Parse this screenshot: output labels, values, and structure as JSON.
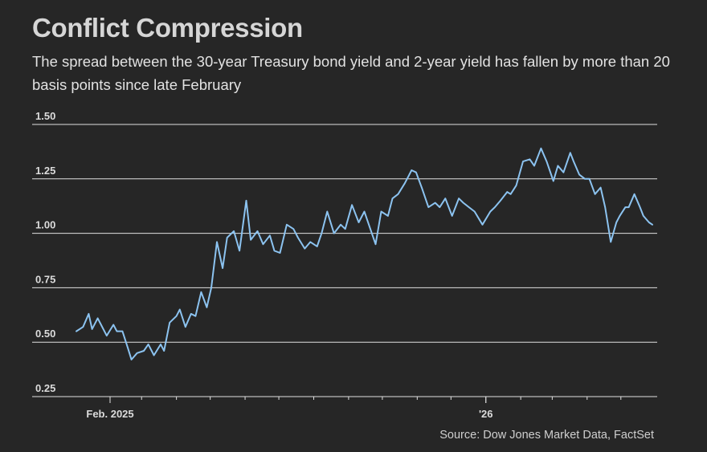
{
  "title": "Conflict Compression",
  "subtitle": "The spread between the 30-year Treasury bond yield and 2-year yield has fallen by more than 20 basis points since late February",
  "source": "Source: Dow Jones Market Data, FactSet",
  "colors": {
    "background": "#262626",
    "line": "#8cc3f0",
    "grid": "#e0e0e0"
  },
  "chart_data": {
    "type": "line",
    "title": "Conflict Compression",
    "ylim": [
      0.25,
      1.5
    ],
    "yticks": [
      "1.50",
      "1.25",
      "1.00",
      "0.75",
      "0.50",
      "0.25"
    ],
    "ytick_values": [
      1.5,
      1.25,
      1.0,
      0.75,
      0.5,
      0.25
    ],
    "xticks": [
      "Feb. 2025",
      "'26"
    ],
    "xtick_dates": [
      "2025-02-01",
      "2026-01-01"
    ],
    "xlim": [
      "2025-01-02",
      "2026-05-29"
    ],
    "grid": true,
    "series": [
      {
        "values": [
          [
            "2025-01-02",
            0.55
          ],
          [
            "2025-01-08",
            0.57
          ],
          [
            "2025-01-13",
            0.63
          ],
          [
            "2025-01-16",
            0.56
          ],
          [
            "2025-01-21",
            0.61
          ],
          [
            "2025-01-24",
            0.58
          ],
          [
            "2025-01-29",
            0.53
          ],
          [
            "2025-02-04",
            0.58
          ],
          [
            "2025-02-07",
            0.55
          ],
          [
            "2025-02-12",
            0.55
          ],
          [
            "2025-02-17",
            0.47
          ],
          [
            "2025-02-20",
            0.42
          ],
          [
            "2025-02-25",
            0.45
          ],
          [
            "2025-03-03",
            0.46
          ],
          [
            "2025-03-07",
            0.49
          ],
          [
            "2025-03-12",
            0.44
          ],
          [
            "2025-03-18",
            0.49
          ],
          [
            "2025-03-21",
            0.46
          ],
          [
            "2025-03-26",
            0.59
          ],
          [
            "2025-04-01",
            0.62
          ],
          [
            "2025-04-04",
            0.65
          ],
          [
            "2025-04-09",
            0.57
          ],
          [
            "2025-04-14",
            0.63
          ],
          [
            "2025-04-18",
            0.62
          ],
          [
            "2025-04-23",
            0.73
          ],
          [
            "2025-04-28",
            0.66
          ],
          [
            "2025-05-02",
            0.75
          ],
          [
            "2025-05-07",
            0.96
          ],
          [
            "2025-05-12",
            0.84
          ],
          [
            "2025-05-16",
            0.98
          ],
          [
            "2025-05-22",
            1.01
          ],
          [
            "2025-05-27",
            0.92
          ],
          [
            "2025-06-02",
            1.15
          ],
          [
            "2025-06-06",
            0.97
          ],
          [
            "2025-06-12",
            1.01
          ],
          [
            "2025-06-17",
            0.95
          ],
          [
            "2025-06-23",
            0.99
          ],
          [
            "2025-06-27",
            0.92
          ],
          [
            "2025-07-02",
            0.91
          ],
          [
            "2025-07-08",
            1.04
          ],
          [
            "2025-07-14",
            1.02
          ],
          [
            "2025-07-18",
            0.98
          ],
          [
            "2025-07-24",
            0.93
          ],
          [
            "2025-07-29",
            0.96
          ],
          [
            "2025-08-04",
            0.94
          ],
          [
            "2025-08-08",
            1.0
          ],
          [
            "2025-08-13",
            1.1
          ],
          [
            "2025-08-19",
            1.0
          ],
          [
            "2025-08-25",
            1.04
          ],
          [
            "2025-08-29",
            1.02
          ],
          [
            "2025-09-04",
            1.13
          ],
          [
            "2025-09-10",
            1.05
          ],
          [
            "2025-09-15",
            1.1
          ],
          [
            "2025-09-19",
            1.04
          ],
          [
            "2025-09-25",
            0.95
          ],
          [
            "2025-09-30",
            1.1
          ],
          [
            "2025-10-06",
            1.08
          ],
          [
            "2025-10-10",
            1.16
          ],
          [
            "2025-10-15",
            1.18
          ],
          [
            "2025-10-21",
            1.23
          ],
          [
            "2025-10-27",
            1.29
          ],
          [
            "2025-10-31",
            1.28
          ],
          [
            "2025-11-05",
            1.21
          ],
          [
            "2025-11-11",
            1.12
          ],
          [
            "2025-11-17",
            1.14
          ],
          [
            "2025-11-21",
            1.12
          ],
          [
            "2025-11-26",
            1.16
          ],
          [
            "2025-12-02",
            1.08
          ],
          [
            "2025-12-08",
            1.16
          ],
          [
            "2025-12-12",
            1.14
          ],
          [
            "2025-12-17",
            1.12
          ],
          [
            "2025-12-22",
            1.1
          ],
          [
            "2025-12-29",
            1.04
          ],
          [
            "2026-01-05",
            1.1
          ],
          [
            "2026-01-09",
            1.12
          ],
          [
            "2026-01-14",
            1.15
          ],
          [
            "2026-01-20",
            1.19
          ],
          [
            "2026-01-23",
            1.18
          ],
          [
            "2026-01-28",
            1.22
          ],
          [
            "2026-02-03",
            1.33
          ],
          [
            "2026-02-09",
            1.34
          ],
          [
            "2026-02-13",
            1.31
          ],
          [
            "2026-02-19",
            1.39
          ],
          [
            "2026-02-24",
            1.33
          ],
          [
            "2026-03-02",
            1.24
          ],
          [
            "2026-03-06",
            1.31
          ],
          [
            "2026-03-11",
            1.28
          ],
          [
            "2026-03-17",
            1.37
          ],
          [
            "2026-03-20",
            1.33
          ],
          [
            "2026-03-25",
            1.27
          ],
          [
            "2026-03-30",
            1.25
          ],
          [
            "2026-04-03",
            1.25
          ],
          [
            "2026-04-08",
            1.18
          ],
          [
            "2026-04-13",
            1.21
          ],
          [
            "2026-04-17",
            1.12
          ],
          [
            "2026-04-22",
            0.96
          ],
          [
            "2026-04-27",
            1.05
          ],
          [
            "2026-04-30",
            1.08
          ],
          [
            "2026-05-05",
            1.12
          ],
          [
            "2026-05-08",
            1.12
          ],
          [
            "2026-05-13",
            1.18
          ],
          [
            "2026-05-18",
            1.12
          ],
          [
            "2026-05-21",
            1.08
          ],
          [
            "2026-05-26",
            1.05
          ],
          [
            "2026-05-29",
            1.04
          ]
        ]
      }
    ]
  }
}
